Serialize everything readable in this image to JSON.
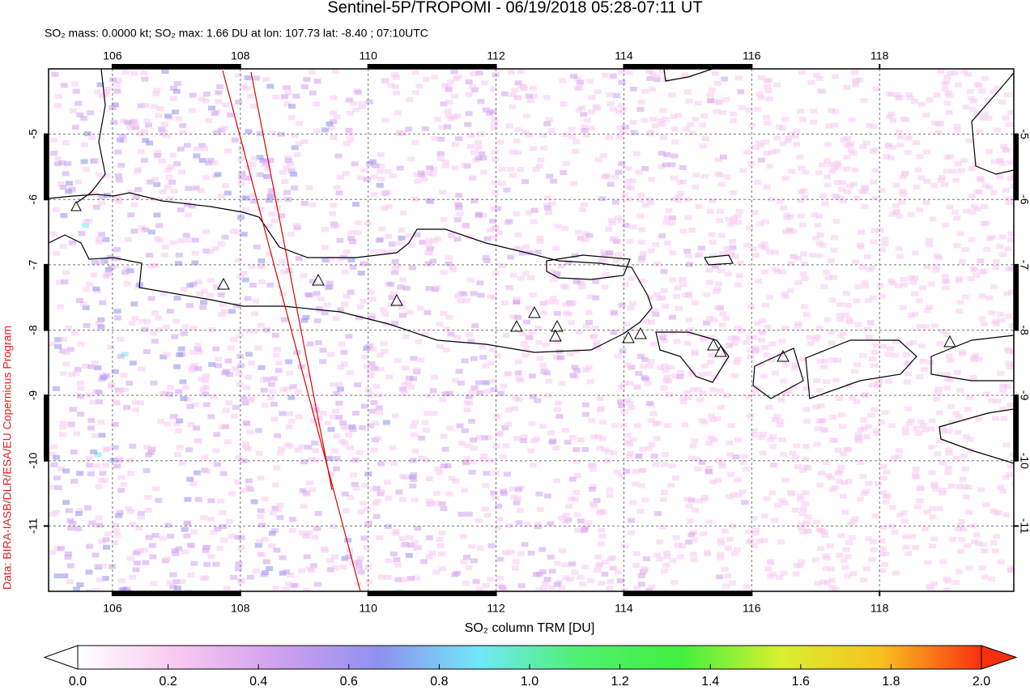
{
  "header": {
    "title": "Sentinel-5P/TROPOMI - 06/19/2018 05:28-07:11 UT",
    "subtitle": "SO₂ mass: 0.0000 kt; SO₂ max: 1.66 DU at lon: 107.73 lat: -8.40 ; 07:10UTC",
    "credit": "Data: BIRA-IASB/DLR/ESA/EU Copernicus Program"
  },
  "map": {
    "xlim": [
      105,
      120.1
    ],
    "ylim": [
      -12,
      -4
    ],
    "xticks": [
      106,
      108,
      110,
      112,
      114,
      116,
      118
    ],
    "yticks": [
      -5,
      -6,
      -7,
      -8,
      -9,
      -10,
      -11
    ],
    "grid": true
  },
  "colorbar": {
    "label": "SO₂ column TRM [DU]",
    "lim": [
      0,
      2
    ],
    "colors": [
      "#ffffff",
      "#f8c8f0",
      "#d0a0f0",
      "#9090f0",
      "#70e8f8",
      "#50f070",
      "#40f040",
      "#d8f030",
      "#f8c020",
      "#f83010"
    ],
    "ticks": [
      {
        "value": 0,
        "label": "0.0"
      },
      {
        "value": 0.2,
        "label": "0.2"
      },
      {
        "value": 0.4,
        "label": "0.4"
      },
      {
        "value": 0.6,
        "label": "0.6"
      },
      {
        "value": 0.8,
        "label": "0.8"
      },
      {
        "value": 1,
        "label": "1.0"
      },
      {
        "value": 1.2,
        "label": "1.2"
      },
      {
        "value": 1.4,
        "label": "1.4"
      },
      {
        "value": 1.6,
        "label": "1.6"
      },
      {
        "value": 1.8,
        "label": "1.8"
      },
      {
        "value": 2,
        "label": "2.0"
      }
    ]
  }
}
